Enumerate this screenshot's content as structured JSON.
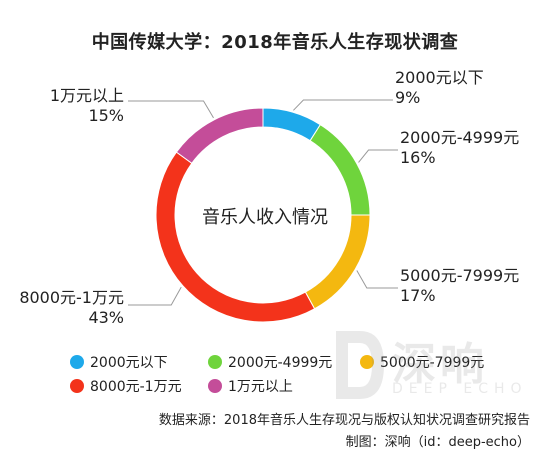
{
  "title": "中国传媒大学：2018年音乐人生存现状调查",
  "chart_data": {
    "type": "pie",
    "donut": true,
    "center_label": "音乐人收入情况",
    "categories": [
      "2000元以下",
      "2000元-4999元",
      "5000元-7999元",
      "8000元-1万元",
      "1万元以上"
    ],
    "values": [
      9,
      16,
      17,
      43,
      15
    ],
    "value_labels": [
      "9%",
      "16%",
      "17%",
      "43%",
      "15%"
    ],
    "colors": [
      "#1ea9ea",
      "#6fd43c",
      "#f4b810",
      "#f3331b",
      "#c44d99"
    ],
    "legend_position": "bottom"
  },
  "source": {
    "line1": "数据来源：2018年音乐人生存现况与版权认知状况调查研究报告",
    "line2": "制图：深响（id：deep-echo）"
  },
  "watermark": {
    "main": "深响",
    "sub": "DEEP ECHO"
  }
}
